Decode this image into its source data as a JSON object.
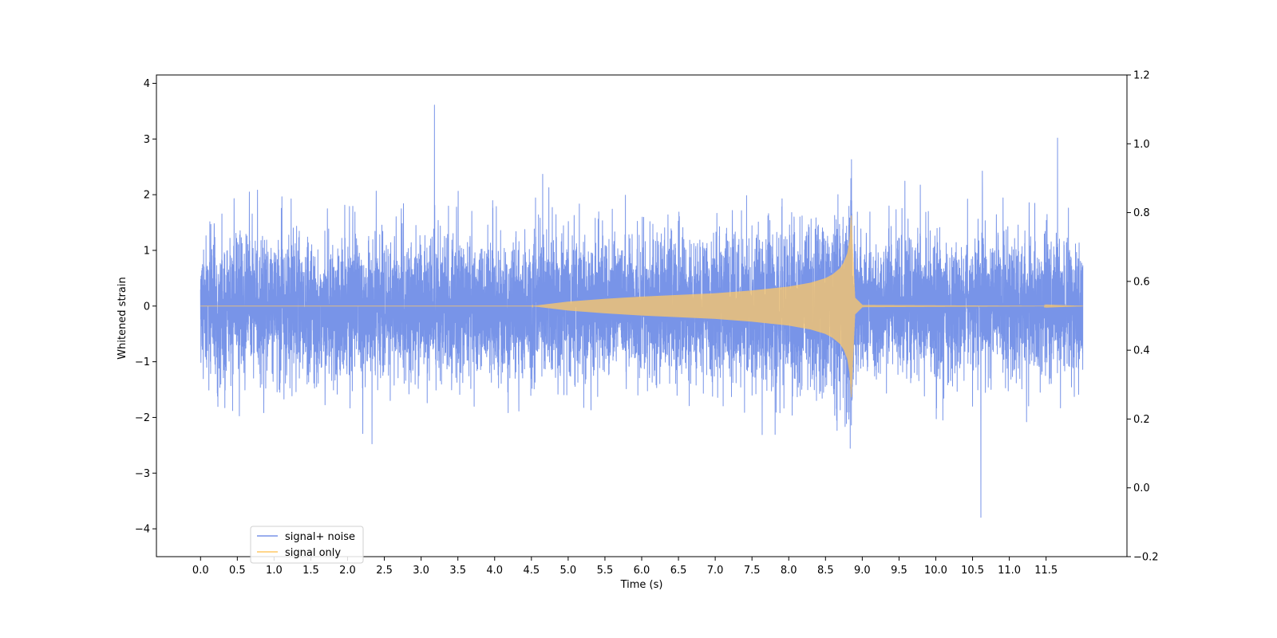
{
  "chart_data": {
    "type": "line",
    "title": "",
    "xlabel": "Time (s)",
    "ylabel": "Whitened strain",
    "xlim": [
      -0.6,
      12.6
    ],
    "ylim": [
      -4.5,
      4.15
    ],
    "y2lim": [
      -0.2,
      1.2
    ],
    "xticks": [
      "0.0",
      "0.5",
      "1.0",
      "1.5",
      "2.0",
      "2.5",
      "3.0",
      "3.5",
      "4.0",
      "4.5",
      "5.0",
      "5.5",
      "6.0",
      "6.5",
      "7.0",
      "7.5",
      "8.0",
      "8.5",
      "9.0",
      "9.5",
      "10.0",
      "10.5",
      "11.0",
      "11.5"
    ],
    "yticks": [
      "−4",
      "−3",
      "−2",
      "−1",
      "0",
      "1",
      "2",
      "3",
      "4"
    ],
    "y2ticks": [
      "−0.2",
      "0.0",
      "0.2",
      "0.4",
      "0.6",
      "0.8",
      "1.0",
      "1.2"
    ],
    "grid": false,
    "legend_position": "lower-left",
    "series": [
      {
        "name": "signal+ noise",
        "color": "#7894e8",
        "x_range": [
          0.0,
          12.0
        ],
        "description_values": "noise with amplitude about ±2 and peaks to about ±3.8, plus the chirp signal",
        "typical_envelope": [
          -2.0,
          2.0
        ],
        "max": 3.77,
        "min": -4.0
      },
      {
        "name": "signal only",
        "color": "#ffc865",
        "x": [
          0.0,
          4.0,
          4.5,
          5.0,
          5.5,
          6.0,
          6.5,
          7.0,
          7.5,
          8.0,
          8.3,
          8.5,
          8.6,
          8.7,
          8.75,
          8.8,
          8.83,
          8.85,
          8.87,
          8.9,
          9.0,
          12.0
        ],
        "envelope": [
          0.0,
          0.0,
          0.0,
          0.08,
          0.13,
          0.17,
          0.2,
          0.23,
          0.28,
          0.35,
          0.42,
          0.5,
          0.57,
          0.68,
          0.78,
          0.95,
          1.2,
          1.65,
          1.0,
          0.15,
          0.02,
          0.0
        ]
      }
    ]
  }
}
